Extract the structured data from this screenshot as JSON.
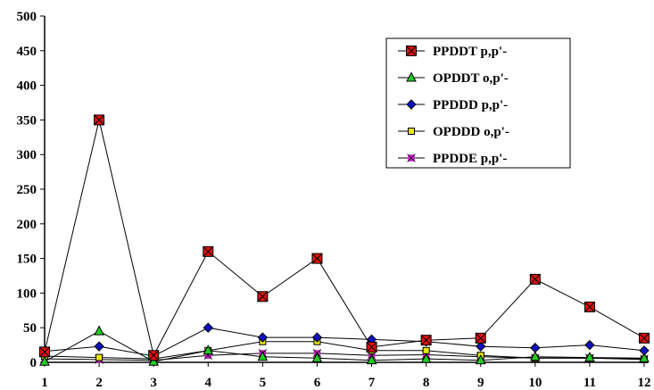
{
  "chart_data": {
    "type": "line",
    "title": "",
    "xlabel": "",
    "ylabel": "",
    "x": [
      1,
      2,
      3,
      4,
      5,
      6,
      7,
      8,
      9,
      10,
      11,
      12
    ],
    "ylim": [
      0,
      500
    ],
    "yticks": [
      0,
      50,
      100,
      150,
      200,
      250,
      300,
      350,
      400,
      450,
      500
    ],
    "grid": false,
    "legend_position": "top-right",
    "series": [
      {
        "name": "PPDDT p,p'-",
        "marker": "square-x",
        "color": "#e01010",
        "line_color": "#000000",
        "values": [
          15,
          350,
          10,
          160,
          95,
          150,
          22,
          32,
          35,
          120,
          80,
          35
        ]
      },
      {
        "name": "OPDDT o,p'-",
        "marker": "triangle",
        "color": "#22cc22",
        "line_color": "#000000",
        "values": [
          1,
          45,
          1,
          17,
          8,
          6,
          3,
          5,
          3,
          8,
          7,
          6
        ]
      },
      {
        "name": "PPDDD p,p'-",
        "marker": "diamond",
        "color": "#1010c0",
        "line_color": "#000000",
        "values": [
          16,
          23,
          9,
          50,
          36,
          36,
          33,
          30,
          23,
          21,
          25,
          17
        ]
      },
      {
        "name": "OPDDD o,p'-",
        "marker": "square",
        "color": "#e8e800",
        "line_color": "#000000",
        "values": [
          9,
          7,
          5,
          17,
          30,
          30,
          17,
          17,
          10,
          6,
          6,
          4
        ]
      },
      {
        "name": "PPDDE p,p'-",
        "marker": "asterisk",
        "color": "#cc22cc",
        "line_color": "#000000",
        "values": [
          5,
          4,
          3,
          10,
          13,
          13,
          10,
          11,
          8,
          6,
          6,
          5
        ]
      }
    ]
  }
}
